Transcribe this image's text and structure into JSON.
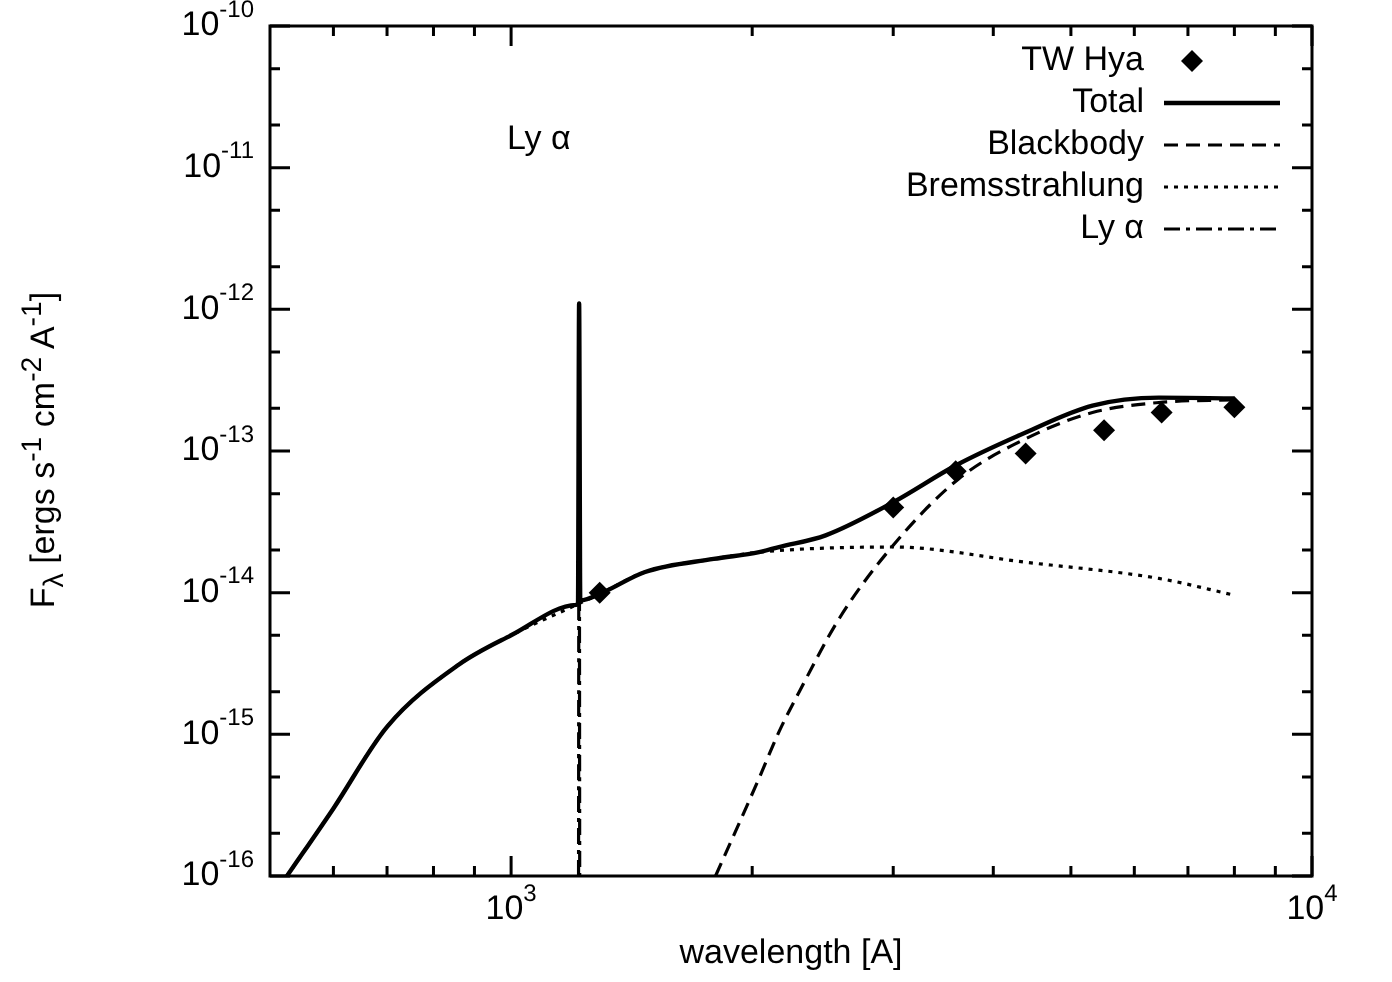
{
  "chart_data": {
    "type": "line",
    "xlabel": "wavelength [A]",
    "ylabel": "F$_{λ}$ [ergs s$^{-1}$ cm$^{-2}$ A$^{-1}$]",
    "log": "xy",
    "xlim": [
      500,
      10000
    ],
    "ylim": [
      1e-16,
      1e-10
    ],
    "xticks": [
      {
        "value": 600,
        "label": null
      },
      {
        "value": 700,
        "label": null
      },
      {
        "value": 800,
        "label": null
      },
      {
        "value": 900,
        "label": null
      },
      {
        "value": 1000,
        "label": "10$^{3}$"
      },
      {
        "value": 2000,
        "label": null
      },
      {
        "value": 3000,
        "label": null
      },
      {
        "value": 4000,
        "label": null
      },
      {
        "value": 5000,
        "label": null
      },
      {
        "value": 6000,
        "label": null
      },
      {
        "value": 7000,
        "label": null
      },
      {
        "value": 8000,
        "label": null
      },
      {
        "value": 9000,
        "label": null
      },
      {
        "value": 10000,
        "label": "10$^{4}$"
      }
    ],
    "yticks": [
      {
        "value": 1e-16,
        "label": "10$^{-16}$"
      },
      {
        "value": 2e-16,
        "label": null
      },
      {
        "value": 5e-16,
        "label": null
      },
      {
        "value": 1e-15,
        "label": "10$^{-15}$"
      },
      {
        "value": 2e-15,
        "label": null
      },
      {
        "value": 5e-15,
        "label": null
      },
      {
        "value": 1e-14,
        "label": "10$^{-14}$"
      },
      {
        "value": 2e-14,
        "label": null
      },
      {
        "value": 5e-14,
        "label": null
      },
      {
        "value": 1e-13,
        "label": "10$^{-13}$"
      },
      {
        "value": 2e-13,
        "label": null
      },
      {
        "value": 5e-13,
        "label": null
      },
      {
        "value": 1e-12,
        "label": "10$^{-12}$"
      },
      {
        "value": 2e-12,
        "label": null
      },
      {
        "value": 5e-12,
        "label": null
      },
      {
        "value": 1e-11,
        "label": "10$^{-11}$"
      },
      {
        "value": 2e-11,
        "label": null
      },
      {
        "value": 5e-11,
        "label": null
      },
      {
        "value": 1e-10,
        "label": "10$^{-10}$"
      }
    ],
    "grid": false,
    "legend": "top right",
    "annotations": [
      "Ly α"
    ],
    "series": [
      {
        "name": "TW Hya",
        "type": "scatter",
        "marker": "diamond",
        "color": "#000000",
        "x": [
          1290,
          3000,
          3590,
          4390,
          5500,
          6490,
          8000
        ],
        "values": [
          1e-14,
          4e-14,
          7.2e-14,
          9.6e-14,
          1.4e-13,
          1.87e-13,
          2.04e-13
        ]
      },
      {
        "name": "Total",
        "line_style": "solid",
        "color": "#000000",
        "x": [
          525,
          600,
          700,
          860,
          1000,
          1206,
          1212,
          1216,
          1220,
          1300,
          1470,
          1790,
          2040,
          2160,
          2470,
          3000,
          3590,
          4390,
          5320,
          6440,
          8000
        ],
        "values": [
          1e-16,
          3e-16,
          1.13e-15,
          3.1e-15,
          5e-15,
          8.2e-15,
          8.5e-15,
          1.1e-12,
          8.8e-15,
          1e-14,
          1.4e-14,
          1.73e-14,
          1.93e-14,
          2.1e-14,
          2.54e-14,
          4.35e-14,
          7.9e-14,
          1.35e-13,
          2.09e-13,
          2.38e-13,
          2.35e-13
        ]
      },
      {
        "name": "Blackbody",
        "line_style": "dashed",
        "color": "#000000",
        "x": [
          1800,
          2040,
          2160,
          2290,
          2570,
          3000,
          3620,
          4390,
          5320,
          6440,
          8000
        ],
        "values": [
          1e-16,
          4.9e-16,
          1.04e-15,
          2e-15,
          6.6e-15,
          2.16e-14,
          6.35e-14,
          1.22e-13,
          1.87e-13,
          2.2e-13,
          2.3e-13
        ]
      },
      {
        "name": "Bremsstrahlung",
        "line_style": "dotted",
        "color": "#000000",
        "x": [
          525,
          600,
          700,
          860,
          1000,
          1206,
          1300,
          1470,
          1790,
          2040,
          3000,
          4390,
          6440,
          8000
        ],
        "values": [
          1e-16,
          3e-16,
          1.13e-15,
          3.1e-15,
          5e-15,
          8.2e-15,
          1e-14,
          1.4e-14,
          1.73e-14,
          1.93e-14,
          2.1e-14,
          1.64e-14,
          1.26e-14,
          9.6e-15
        ]
      },
      {
        "name": "Ly α",
        "line_style": "dashdot",
        "color": "#000000",
        "x": [
          1214,
          1216,
          1218
        ],
        "values": [
          1e-16,
          1.1e-12,
          1e-16
        ]
      }
    ]
  }
}
